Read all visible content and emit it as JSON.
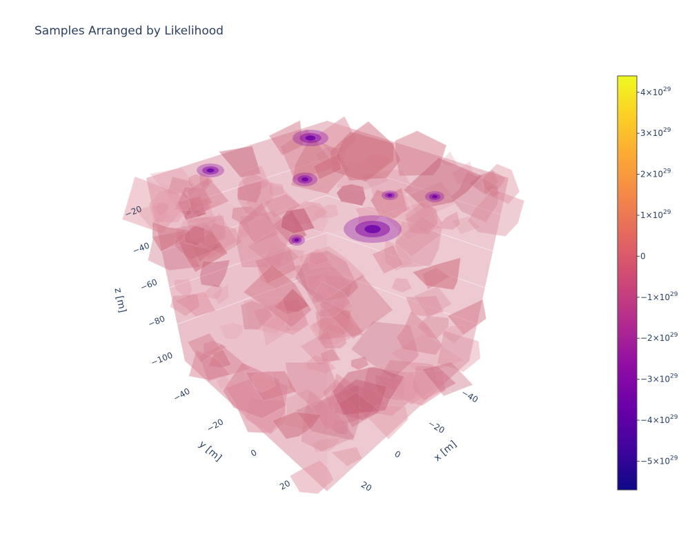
{
  "chart_data": {
    "type": "volume",
    "title": "Samples Arranged by Likelihood",
    "axes": {
      "x": {
        "label": "x [m]",
        "ticks": [
          -40,
          -20,
          0,
          20
        ],
        "range": [
          -50,
          35
        ]
      },
      "y": {
        "label": "y [m]",
        "ticks": [
          -40,
          -20,
          0,
          20
        ],
        "range": [
          -50,
          35
        ]
      },
      "z": {
        "label": "z [m]",
        "ticks": [
          -20,
          -40,
          -60,
          -80,
          -100
        ],
        "range": [
          -105,
          -5
        ]
      }
    },
    "colorbar": {
      "colorscale": "Plasma",
      "range": [
        -5.7e+29,
        4.4e+29
      ],
      "ticks": [
        {
          "value": 4e+29,
          "base": "4×10",
          "exp": "29"
        },
        {
          "value": 3e+29,
          "base": "3×10",
          "exp": "29"
        },
        {
          "value": 2e+29,
          "base": "2×10",
          "exp": "29"
        },
        {
          "value": 1e+29,
          "base": "1×10",
          "exp": "29"
        },
        {
          "value": 0,
          "base": "0",
          "exp": ""
        },
        {
          "value": -1e+29,
          "base": "−1×10",
          "exp": "29"
        },
        {
          "value": -2e+29,
          "base": "−2×10",
          "exp": "29"
        },
        {
          "value": -3e+29,
          "base": "−3×10",
          "exp": "29"
        },
        {
          "value": -4e+29,
          "base": "−4×10",
          "exp": "29"
        },
        {
          "value": -5e+29,
          "base": "−5×10",
          "exp": "29"
        }
      ]
    },
    "grid": true
  },
  "colors": {
    "cube_face": "#e6b3bf",
    "blob_light": "#dc8f9f",
    "blob_mid": "#d0707f",
    "blob_dark": "#c45a72",
    "hot_purple": "#8b10a8",
    "hot_violet": "#6a00a8"
  }
}
